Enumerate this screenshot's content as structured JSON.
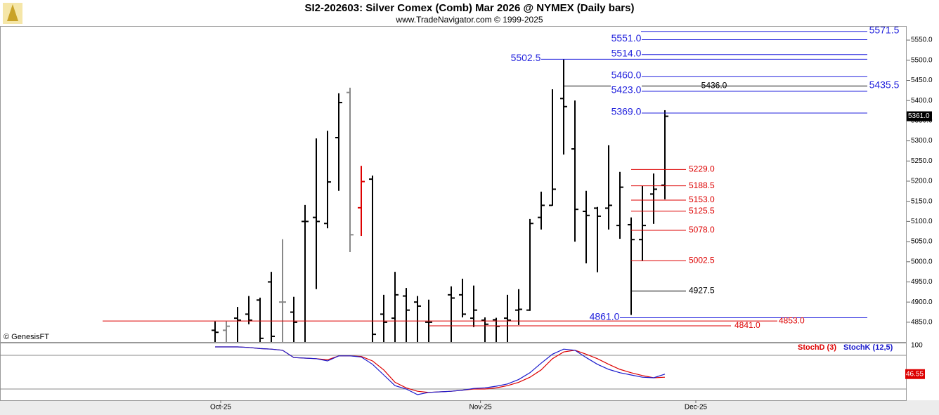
{
  "chart_data": [
    {
      "type": "ohlc",
      "title": "SI2-202603:  Silver Comex (Comb) Mar 2026 @ NYMEX  (Daily bars)",
      "subtitle": "www.TradeNavigator.com © 1999-2025",
      "copyright": "© GenesisFT",
      "x": [
        0,
        1,
        2,
        3,
        4,
        5,
        6,
        7,
        8,
        9,
        10,
        11,
        12,
        13,
        14,
        15,
        16,
        17,
        18,
        19,
        21,
        22,
        23,
        24,
        25,
        26,
        27,
        28,
        29,
        30,
        31,
        32,
        33,
        34,
        35,
        36,
        37,
        38,
        39,
        40
      ],
      "open": [
        4830,
        4830,
        4860,
        4870,
        4905,
        4950,
        4900,
        4875,
        5100,
        5110,
        5095,
        5308,
        5420,
        5134,
        5205,
        4870,
        4860,
        4915,
        4900,
        4850,
        4918,
        4918,
        4860,
        4855,
        4856,
        4860,
        4880,
        4880,
        5110,
        5140,
        5405,
        5280,
        5125,
        5133,
        5133,
        5090,
        5092,
        5055,
        5168,
        5190
      ],
      "high": [
        4852,
        4852,
        4888,
        4915,
        4911,
        4975,
        5056,
        4913,
        5141,
        5306,
        5325,
        5418,
        5432,
        5238,
        5214,
        4918,
        4975,
        4935,
        4915,
        4906,
        4939,
        4958,
        4941,
        4862,
        4861,
        4918,
        4932,
        5106,
        5174,
        5428,
        5502.5,
        5400,
        5176,
        5136,
        5289,
        5223,
        5110,
        5188,
        5219,
        5376
      ],
      "low": [
        4780,
        4780,
        4780,
        4845,
        4780,
        4800,
        4780,
        4780,
        4780,
        4932,
        5083,
        5176,
        5024,
        5064,
        4780,
        4780,
        4780,
        4780,
        4780,
        4780,
        4780,
        4862,
        4838,
        4780,
        4780,
        4780,
        4843,
        4878,
        5080,
        5139,
        5266,
        5050,
        4996,
        4974,
        5080,
        5057,
        4868,
        5003,
        5094,
        5155
      ],
      "close": [
        4825,
        4840,
        4855,
        4855,
        4810,
        4815,
        4900,
        4850,
        5100,
        5100,
        5198,
        5395,
        5067,
        5199,
        4820,
        4850,
        4918,
        4880,
        4890,
        4850,
        4910,
        4870,
        4880,
        4845,
        4840,
        4855,
        4882,
        5095,
        5140,
        5180,
        5385,
        5130,
        5115,
        5113,
        5140,
        5185,
        5055,
        5090,
        5180,
        5361
      ],
      "colors": [
        "#000",
        "#888",
        "#000",
        "#000",
        "#000",
        "#000",
        "#888",
        "#000",
        "#000",
        "#000",
        "#000",
        "#000",
        "#888",
        "#d00",
        "#000",
        "#000",
        "#000",
        "#000",
        "#000",
        "#000",
        "#000",
        "#000",
        "#000",
        "#000",
        "#000",
        "#000",
        "#000",
        "#000",
        "#000",
        "#000",
        "#000",
        "#000",
        "#000",
        "#000",
        "#000",
        "#000",
        "#000",
        "#000",
        "#000",
        "#000"
      ],
      "xlim": [
        -19.125,
        61.5
      ],
      "xticks": [
        {
          "value": 0.5,
          "label": "Oct-25"
        },
        {
          "value": 23.6,
          "label": "Nov-25"
        },
        {
          "value": 42.75,
          "label": "Dec-25"
        }
      ],
      "ylim": [
        4801,
        5585
      ],
      "yticks": [
        {
          "value": 4850,
          "label": "4850.0"
        },
        {
          "value": 4900,
          "label": "4900.0"
        },
        {
          "value": 4950,
          "label": "4950.0"
        },
        {
          "value": 5000,
          "label": "5000.0"
        },
        {
          "value": 5050,
          "label": "5050.0"
        },
        {
          "value": 5100,
          "label": "5100.0"
        },
        {
          "value": 5150,
          "label": "5150.0"
        },
        {
          "value": 5200,
          "label": "5200.0"
        },
        {
          "value": 5250,
          "label": "5250.0"
        },
        {
          "value": 5300,
          "label": "5300.0"
        },
        {
          "value": 5350,
          "label": "5350.0"
        },
        {
          "value": 5400,
          "label": "5400.0"
        },
        {
          "value": 5450,
          "label": "5450.0"
        },
        {
          "value": 5500,
          "label": "5500.0"
        },
        {
          "value": 5550,
          "label": "5550.0"
        }
      ],
      "last_price": {
        "value": 5361,
        "label": "5361.0"
      },
      "levels": [
        {
          "value": 5571.5,
          "label": "5571.5",
          "color": "#2222dd"
        },
        {
          "value": 5551,
          "label": "5551.0",
          "color": "#2222dd"
        },
        {
          "value": 5514,
          "label": "5514.0",
          "color": "#2222dd"
        },
        {
          "value": 5502.5,
          "label": "5502.5",
          "color": "#2222dd"
        },
        {
          "value": 5460,
          "label": "5460.0",
          "color": "#2222dd"
        },
        {
          "value": 5436,
          "label": "5436.0",
          "color": "#000000"
        },
        {
          "value": 5435.5,
          "label": "5435.5",
          "color": "#2222dd"
        },
        {
          "value": 5423,
          "label": "5423.0",
          "color": "#2222dd"
        },
        {
          "value": 5369,
          "label": "5369.0",
          "color": "#2222dd"
        },
        {
          "value": 5229,
          "label": "5229.0",
          "color": "#dd0000"
        },
        {
          "value": 5188.5,
          "label": "5188.5",
          "color": "#dd0000"
        },
        {
          "value": 5153,
          "label": "5153.0",
          "color": "#dd0000"
        },
        {
          "value": 5125.5,
          "label": "5125.5",
          "color": "#dd0000"
        },
        {
          "value": 5078,
          "label": "5078.0",
          "color": "#dd0000"
        },
        {
          "value": 5002.5,
          "label": "5002.5",
          "color": "#dd0000"
        },
        {
          "value": 4927.5,
          "label": "4927.5",
          "color": "#000000"
        },
        {
          "value": 4861,
          "label": "4861.0",
          "color": "#2222dd"
        },
        {
          "value": 4853,
          "label": "4853.0",
          "color": "#dd0000"
        },
        {
          "value": 4841,
          "label": "4841.0",
          "color": "#dd0000"
        }
      ]
    },
    {
      "type": "line",
      "series": [
        {
          "name": "StochD (3)",
          "color": "#dd0000",
          "values": [
            95,
            95,
            95,
            94,
            92,
            91,
            89,
            76,
            75,
            74,
            72,
            79,
            79,
            78,
            70,
            54,
            32,
            22,
            16,
            14,
            16,
            18,
            20,
            20,
            22,
            26,
            32,
            41,
            54,
            74,
            86,
            89,
            82,
            74,
            64,
            55,
            49,
            44,
            40,
            41
          ]
        },
        {
          "name": "StochK (12,5)",
          "color": "#1a1acc",
          "values": [
            95,
            95,
            95,
            94,
            92,
            91,
            89,
            76,
            75,
            74,
            70,
            79,
            79,
            77,
            64,
            45,
            26,
            20,
            10,
            14,
            16,
            18,
            21,
            22,
            25,
            29,
            37,
            49,
            66,
            82,
            91,
            89,
            76,
            64,
            55,
            49,
            45,
            41,
            40,
            46.55
          ]
        }
      ],
      "ylim": [
        0,
        100
      ],
      "yticks": [
        100
      ],
      "levels": [
        80,
        20
      ]
    }
  ]
}
